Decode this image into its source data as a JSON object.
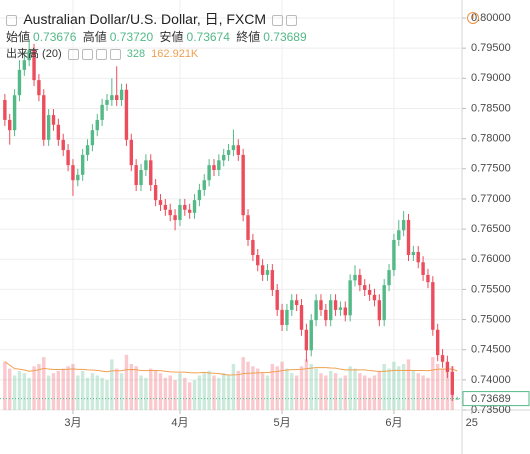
{
  "chart_data": {
    "type": "candlestick",
    "title": "Australian Dollar/U.S. Dollar, 日, FXCM",
    "ohlc_names": [
      "始値",
      "高値",
      "安値",
      "終値"
    ],
    "ohlc_value_labels": [
      "0.73676",
      "0.73720",
      "0.73674",
      "0.73689"
    ],
    "volume_name": "出来高 (20)",
    "volume_ma_label": "162.921K",
    "up_color": "#53b987",
    "down_color": "#eb4d5c",
    "ma_color": "#f0a050",
    "grid": true,
    "ylim": [
      0.735,
      0.8
    ],
    "yticks": [
      {
        "value": 0.8,
        "label": "0.80000"
      },
      {
        "value": 0.795,
        "label": "0.79500"
      },
      {
        "value": 0.79,
        "label": "0.79000"
      },
      {
        "value": 0.785,
        "label": "0.78500"
      },
      {
        "value": 0.78,
        "label": "0.78000"
      },
      {
        "value": 0.775,
        "label": "0.77500"
      },
      {
        "value": 0.77,
        "label": "0.77000"
      },
      {
        "value": 0.765,
        "label": "0.76500"
      },
      {
        "value": 0.76,
        "label": "0.76000"
      },
      {
        "value": 0.755,
        "label": "0.75500"
      },
      {
        "value": 0.75,
        "label": "0.75000"
      },
      {
        "value": 0.745,
        "label": "0.74500"
      },
      {
        "value": 0.74,
        "label": "0.74000"
      },
      {
        "value": 0.735,
        "label": "0.73500"
      }
    ],
    "xlim": [
      -1,
      94
    ],
    "xticks": [
      {
        "value": 14,
        "label": "3月"
      },
      {
        "value": 36,
        "label": "4月"
      },
      {
        "value": 57,
        "label": "5月"
      },
      {
        "value": 80,
        "label": "6月"
      },
      {
        "value": 96,
        "label": "25"
      }
    ],
    "vlim": [
      0,
      400000
    ],
    "open": [
      0.7864,
      0.7831,
      0.7814,
      0.7872,
      0.7914,
      0.793,
      0.7947,
      0.7897,
      0.7872,
      0.7798,
      0.7839,
      0.7823,
      0.7798,
      0.7781,
      0.7756,
      0.7731,
      0.774,
      0.7773,
      0.7789,
      0.7814,
      0.7831,
      0.7856,
      0.7864,
      0.7872,
      0.7864,
      0.7881,
      0.7798,
      0.7756,
      0.7723,
      0.7748,
      0.7764,
      0.7723,
      0.7698,
      0.769,
      0.7682,
      0.7673,
      0.7665,
      0.769,
      0.7682,
      0.7677,
      0.7698,
      0.7715,
      0.7731,
      0.7756,
      0.7748,
      0.7764,
      0.7773,
      0.7781,
      0.7789,
      0.7773,
      0.7673,
      0.7632,
      0.7607,
      0.759,
      0.7574,
      0.7582,
      0.7549,
      0.7516,
      0.7491,
      0.7516,
      0.7532,
      0.7524,
      0.7483,
      0.7449,
      0.7499,
      0.7532,
      0.7516,
      0.7499,
      0.7532,
      0.7516,
      0.752,
      0.7507,
      0.7565,
      0.7574,
      0.7557,
      0.7549,
      0.7541,
      0.7532,
      0.7499,
      0.7557,
      0.7582,
      0.7632,
      0.7648,
      0.7665,
      0.7607,
      0.7612,
      0.7595,
      0.7574,
      0.7562,
      0.7483,
      0.7441,
      0.743,
      0.7413,
      0.73676
    ],
    "high": [
      0.7874,
      0.7841,
      0.7882,
      0.793,
      0.7945,
      0.7965,
      0.7957,
      0.7907,
      0.7882,
      0.7849,
      0.7849,
      0.7833,
      0.7808,
      0.7791,
      0.7766,
      0.775,
      0.7783,
      0.7799,
      0.7824,
      0.7841,
      0.7866,
      0.7874,
      0.79,
      0.792,
      0.7891,
      0.7891,
      0.7808,
      0.7766,
      0.7758,
      0.7774,
      0.7774,
      0.7733,
      0.7708,
      0.77,
      0.7692,
      0.7683,
      0.77,
      0.77,
      0.7692,
      0.7708,
      0.7725,
      0.7741,
      0.7766,
      0.7766,
      0.7774,
      0.7783,
      0.7791,
      0.7815,
      0.7799,
      0.7783,
      0.7683,
      0.7642,
      0.7617,
      0.76,
      0.7592,
      0.7592,
      0.7559,
      0.7526,
      0.7526,
      0.7542,
      0.7542,
      0.7534,
      0.7493,
      0.7509,
      0.7542,
      0.7542,
      0.7526,
      0.7542,
      0.7542,
      0.753,
      0.753,
      0.7575,
      0.759,
      0.7584,
      0.7567,
      0.7559,
      0.7551,
      0.7542,
      0.7567,
      0.7592,
      0.7642,
      0.7665,
      0.768,
      0.7675,
      0.7622,
      0.7622,
      0.7605,
      0.7584,
      0.7572,
      0.7493,
      0.7451,
      0.744,
      0.7423,
      0.7372
    ],
    "low": [
      0.7821,
      0.779,
      0.7804,
      0.7862,
      0.7904,
      0.792,
      0.7887,
      0.7862,
      0.7788,
      0.7788,
      0.7813,
      0.7788,
      0.7771,
      0.7746,
      0.7705,
      0.7721,
      0.773,
      0.7763,
      0.7779,
      0.7804,
      0.7821,
      0.7846,
      0.7854,
      0.7854,
      0.7854,
      0.7788,
      0.7746,
      0.7713,
      0.7713,
      0.7738,
      0.7713,
      0.7688,
      0.768,
      0.7672,
      0.7663,
      0.7648,
      0.7655,
      0.7672,
      0.7667,
      0.7667,
      0.7688,
      0.7705,
      0.7721,
      0.7738,
      0.7738,
      0.7754,
      0.7763,
      0.7771,
      0.7763,
      0.7663,
      0.7622,
      0.7597,
      0.758,
      0.7564,
      0.7564,
      0.7539,
      0.7506,
      0.7481,
      0.7481,
      0.7506,
      0.7514,
      0.7473,
      0.743,
      0.7439,
      0.7489,
      0.7506,
      0.7489,
      0.7489,
      0.7506,
      0.7506,
      0.7497,
      0.7497,
      0.7555,
      0.7547,
      0.7539,
      0.7531,
      0.7522,
      0.7489,
      0.7489,
      0.7547,
      0.7572,
      0.7622,
      0.7638,
      0.7597,
      0.7597,
      0.7585,
      0.7564,
      0.7552,
      0.7473,
      0.7431,
      0.742,
      0.7403,
      0.7365,
      0.73674
    ],
    "close": [
      0.7831,
      0.7814,
      0.7872,
      0.7914,
      0.793,
      0.7947,
      0.7897,
      0.7872,
      0.7798,
      0.7839,
      0.7823,
      0.7798,
      0.7781,
      0.7756,
      0.7731,
      0.774,
      0.7773,
      0.7789,
      0.7814,
      0.7831,
      0.7856,
      0.7864,
      0.7872,
      0.7864,
      0.7881,
      0.7798,
      0.7756,
      0.7723,
      0.7748,
      0.7764,
      0.7723,
      0.7698,
      0.769,
      0.7682,
      0.7673,
      0.7665,
      0.769,
      0.7682,
      0.7677,
      0.7698,
      0.7715,
      0.7731,
      0.7756,
      0.7748,
      0.7764,
      0.7773,
      0.7781,
      0.7789,
      0.7773,
      0.7673,
      0.7632,
      0.7607,
      0.759,
      0.7574,
      0.7582,
      0.7549,
      0.7516,
      0.7491,
      0.7516,
      0.7532,
      0.7524,
      0.7483,
      0.7449,
      0.7499,
      0.7532,
      0.7516,
      0.7499,
      0.7532,
      0.7516,
      0.752,
      0.7507,
      0.7565,
      0.7574,
      0.7557,
      0.7549,
      0.7541,
      0.7532,
      0.7499,
      0.7557,
      0.7582,
      0.7632,
      0.7648,
      0.7665,
      0.7607,
      0.7612,
      0.7595,
      0.7574,
      0.7562,
      0.7483,
      0.7441,
      0.743,
      0.7413,
      0.7375,
      0.73689
    ],
    "volume": [
      210000,
      180000,
      150000,
      170000,
      160000,
      140000,
      190000,
      200000,
      230000,
      150000,
      160000,
      170000,
      180000,
      190000,
      200000,
      150000,
      170000,
      140000,
      160000,
      150000,
      140000,
      130000,
      220000,
      180000,
      160000,
      240000,
      200000,
      190000,
      150000,
      140000,
      180000,
      170000,
      160000,
      140000,
      150000,
      130000,
      160000,
      140000,
      120000,
      130000,
      150000,
      160000,
      170000,
      150000,
      140000,
      160000,
      150000,
      200000,
      170000,
      230000,
      210000,
      190000,
      180000,
      160000,
      150000,
      200000,
      190000,
      210000,
      180000,
      160000,
      150000,
      190000,
      220000,
      200000,
      180000,
      160000,
      150000,
      170000,
      160000,
      140000,
      150000,
      190000,
      180000,
      160000,
      150000,
      140000,
      150000,
      170000,
      200000,
      180000,
      210000,
      190000,
      200000,
      220000,
      170000,
      160000,
      150000,
      140000,
      230000,
      200000,
      180000,
      170000,
      190000,
      328
    ]
  }
}
